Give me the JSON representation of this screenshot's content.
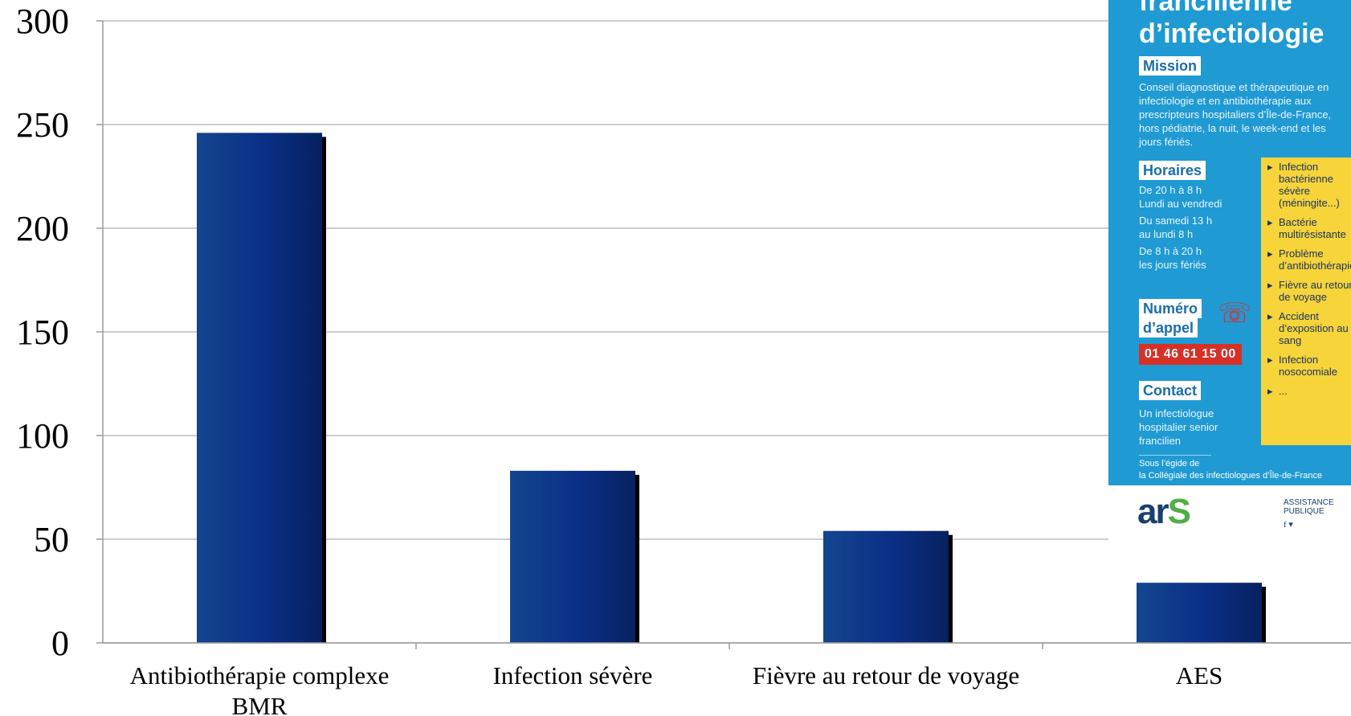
{
  "chart_data": {
    "type": "bar",
    "categories": [
      "Antibiothérapie complexe BMR",
      "Infection sévère",
      "Fièvre au retour de voyage",
      "AES"
    ],
    "category_lines": [
      [
        "Antibiothérapie complexe",
        "BMR"
      ],
      [
        "Infection sévère"
      ],
      [
        "Fièvre au retour de voyage"
      ],
      [
        "AES"
      ]
    ],
    "values": [
      246,
      83,
      54,
      29
    ],
    "ylim": [
      0,
      300
    ],
    "yticks": [
      "0",
      "50",
      "100",
      "150",
      "200",
      "250",
      "300"
    ],
    "grid": true,
    "bar_color": "#0a2f86",
    "title": "",
    "xlabel": "",
    "ylabel": ""
  },
  "poster": {
    "title_line1": "francilienne",
    "title_line2": "d’infectiologie",
    "mission_label": "Mission",
    "mission_text": "Conseil diagnostique et thérapeutique en infectiologie et en antibiothérapie aux prescripteurs hospitaliers d’Île-de-France, hors pédiatrie, la nuit, le week-end et les jours fériés.",
    "hours_label": "Horaires",
    "hours": [
      [
        "De 20 h à 8 h",
        "Lundi au vendredi"
      ],
      [
        "Du samedi 13 h",
        "au lundi 8 h"
      ],
      [
        "De 8 h à 20 h",
        "les jours fériés"
      ]
    ],
    "call_label_1": "Numéro",
    "call_label_2": "d’appel",
    "phone": "01 46 61 15 00",
    "contact_label": "Contact",
    "contact_text": "Un infectiologue hospitalier senior francilien",
    "egide_1": "Sous l’égide de",
    "egide_2": "la Collégiale des infectiologues d’Île-de-France",
    "reasons": [
      "Infection bactérienne sévère (méningite...)",
      "Bactérie multirésistante",
      "Problème d’antibiothérapie",
      "Fièvre au retour de voyage",
      "Accident d’exposition au sang",
      "Infection nosocomiale",
      "..."
    ],
    "logo_ars_1": "ar",
    "logo_ars_2": "S",
    "logo_aphp_1": "ASSISTANCE",
    "logo_aphp_2": "PUBLIQUE",
    "social": "f ▾"
  },
  "colors": {
    "poster_bg": "#1f9ad3",
    "yellow": "#f6d43a",
    "phone_bg": "#d73027"
  }
}
